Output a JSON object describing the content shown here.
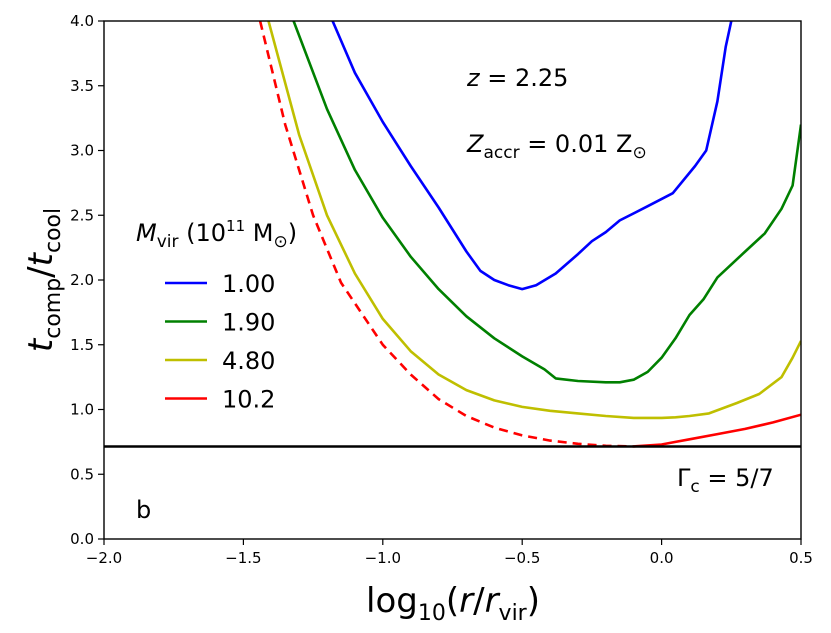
{
  "chart_data": {
    "type": "line",
    "xlabel": "log10(r/rvir)",
    "ylabel": "tcomp/tcool",
    "xlim": [
      -2.0,
      0.5
    ],
    "ylim": [
      0.0,
      4.0
    ],
    "xticks": [
      "−2.0",
      "−1.5",
      "−1.0",
      "−0.5",
      "0.0",
      "0.5"
    ],
    "yticks": [
      "0.0",
      "0.5",
      "1.0",
      "1.5",
      "2.0",
      "2.5",
      "3.0",
      "3.5",
      "4.0"
    ],
    "xtick_values": [
      -2.0,
      -1.5,
      -1.0,
      -0.5,
      0.0,
      0.5
    ],
    "ytick_values": [
      0.0,
      0.5,
      1.0,
      1.5,
      2.0,
      2.5,
      3.0,
      3.5,
      4.0
    ],
    "legend_title": "Mvir (10^11 M⊙)",
    "legend_placement": "left",
    "annotations": {
      "redshift": "z = 2.25",
      "metallicity": "Zaccr = 0.01 Z⊙",
      "gamma": "Γc = 5/7",
      "panel": "b"
    },
    "hline": {
      "y": 0.714,
      "color": "#000000",
      "label": "Γc = 5/7"
    },
    "series": [
      {
        "name": "1.00",
        "color": "#0000ff",
        "style": "solid",
        "x": [
          -1.18,
          -1.1,
          -1.0,
          -0.9,
          -0.8,
          -0.7,
          -0.65,
          -0.6,
          -0.55,
          -0.5,
          -0.45,
          -0.38,
          -0.3,
          -0.25,
          -0.2,
          -0.15,
          -0.05,
          0.04,
          0.12,
          0.16,
          0.2,
          0.23,
          0.25
        ],
        "y": [
          4.0,
          3.6,
          3.22,
          2.88,
          2.56,
          2.22,
          2.07,
          2.0,
          1.96,
          1.93,
          1.96,
          2.05,
          2.2,
          2.3,
          2.37,
          2.46,
          2.57,
          2.67,
          2.88,
          3.0,
          3.38,
          3.8,
          4.0
        ]
      },
      {
        "name": "1.90",
        "color": "#008000",
        "style": "solid",
        "x": [
          -1.32,
          -1.2,
          -1.1,
          -1.0,
          -0.9,
          -0.8,
          -0.7,
          -0.6,
          -0.5,
          -0.42,
          -0.38,
          -0.3,
          -0.2,
          -0.15,
          -0.1,
          -0.05,
          0.0,
          0.05,
          0.1,
          0.15,
          0.2,
          0.3,
          0.37,
          0.43,
          0.47,
          0.5
        ],
        "y": [
          4.0,
          3.32,
          2.85,
          2.48,
          2.18,
          1.93,
          1.72,
          1.55,
          1.41,
          1.31,
          1.24,
          1.22,
          1.21,
          1.21,
          1.23,
          1.29,
          1.4,
          1.55,
          1.73,
          1.85,
          2.02,
          2.22,
          2.36,
          2.55,
          2.73,
          3.2
        ]
      },
      {
        "name": "4.80",
        "color": "#bfbf00",
        "style": "solid",
        "x": [
          -1.41,
          -1.3,
          -1.2,
          -1.1,
          -1.0,
          -0.9,
          -0.8,
          -0.7,
          -0.6,
          -0.5,
          -0.4,
          -0.3,
          -0.2,
          -0.1,
          0.0,
          0.05,
          0.1,
          0.17,
          0.27,
          0.35,
          0.43,
          0.47,
          0.5
        ],
        "y": [
          4.0,
          3.12,
          2.5,
          2.05,
          1.7,
          1.45,
          1.27,
          1.15,
          1.07,
          1.02,
          0.99,
          0.97,
          0.95,
          0.935,
          0.935,
          0.94,
          0.95,
          0.97,
          1.05,
          1.12,
          1.25,
          1.4,
          1.53
        ]
      },
      {
        "name": "10.2",
        "color": "#ff0000",
        "style": "dashed",
        "x": [
          -1.44,
          -1.35,
          -1.25,
          -1.15,
          -1.0,
          -0.9,
          -0.8,
          -0.7,
          -0.6,
          -0.5,
          -0.4,
          -0.3,
          -0.2,
          -0.1
        ],
        "y": [
          4.0,
          3.2,
          2.5,
          1.98,
          1.5,
          1.27,
          1.08,
          0.95,
          0.86,
          0.8,
          0.76,
          0.735,
          0.72,
          0.715
        ]
      },
      {
        "name": "10.2-solid",
        "color": "#ff0000",
        "style": "solid",
        "x": [
          -0.1,
          0.0,
          0.05,
          0.1,
          0.2,
          0.3,
          0.4,
          0.5
        ],
        "y": [
          0.715,
          0.73,
          0.75,
          0.77,
          0.81,
          0.85,
          0.9,
          0.96
        ]
      }
    ],
    "legend": [
      {
        "label": "1.00",
        "color": "#0000ff"
      },
      {
        "label": "1.90",
        "color": "#008000"
      },
      {
        "label": "4.80",
        "color": "#bfbf00"
      },
      {
        "label": "10.2",
        "color": "#ff0000"
      }
    ]
  }
}
